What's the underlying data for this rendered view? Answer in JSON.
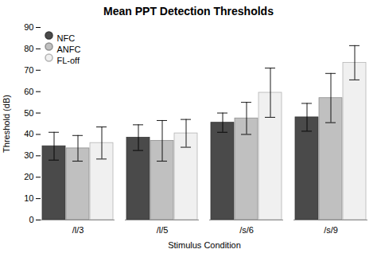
{
  "chart_data": {
    "type": "bar",
    "title": "Mean PPT Detection Thresholds",
    "xlabel": "Stimulus Condition",
    "ylabel": "Threshold (dB)",
    "categories": [
      "/l/3",
      "/l/5",
      "/s/6",
      "/s/9"
    ],
    "series": [
      {
        "name": "NFC",
        "color": "#4a4a4a",
        "values": [
          34.5,
          38.5,
          45.5,
          48.0
        ],
        "errors": [
          6.5,
          6.0,
          4.5,
          6.5
        ]
      },
      {
        "name": "ANFC",
        "color": "#c0c0c0",
        "values": [
          33.5,
          37.0,
          47.5,
          57.0
        ],
        "errors": [
          6.0,
          9.5,
          7.5,
          11.5
        ]
      },
      {
        "name": "FL-off",
        "color": "#f0f0f0",
        "values": [
          36.0,
          40.5,
          59.5,
          73.5
        ],
        "errors": [
          7.5,
          6.5,
          11.5,
          8.0
        ]
      }
    ],
    "ylim": [
      0,
      90
    ],
    "yticks": [
      0,
      10,
      20,
      30,
      40,
      50,
      60,
      70,
      80,
      90
    ],
    "grid": false,
    "legend": "upper left"
  }
}
